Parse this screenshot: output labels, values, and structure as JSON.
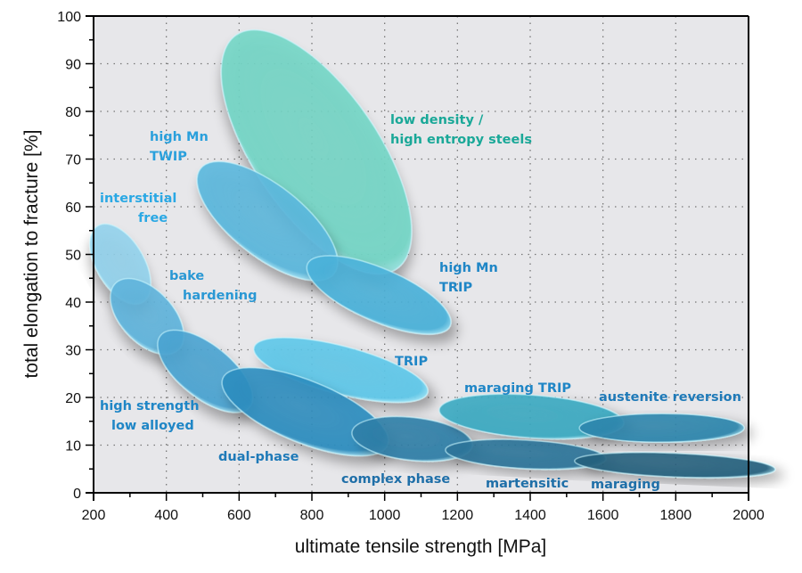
{
  "chart_data": {
    "type": "ellipse-regions",
    "xlabel": "ultimate tensile strength [MPa]",
    "ylabel": "total elongation to fracture [%]",
    "xlim": [
      200,
      2000
    ],
    "ylim": [
      0,
      100
    ],
    "xticks": [
      200,
      400,
      600,
      800,
      1000,
      1200,
      1400,
      1600,
      1800,
      2000
    ],
    "yticks": [
      0,
      10,
      20,
      30,
      40,
      50,
      60,
      70,
      80,
      90,
      100
    ],
    "grid": true,
    "regions": [
      {
        "label": [
          "low density /",
          "high entropy steels"
        ],
        "from": [
          592,
          96
        ],
        "to": [
          1033,
          47
        ],
        "width_pct": 26,
        "color": "#74d6c6",
        "label_color": "#1aa898"
      },
      {
        "label": [
          "high Mn",
          "TWIP"
        ],
        "from": [
          494,
          68
        ],
        "to": [
          861,
          46
        ],
        "width_pct": 15,
        "color": "#5bb8dd",
        "label_color": "#2aa0dc"
      },
      {
        "label": [
          "high Mn",
          "TRIP"
        ],
        "from": [
          788,
          48
        ],
        "to": [
          1180,
          35
        ],
        "width_pct": 11,
        "color": "#4ab2da",
        "label_color": "#1f86c6"
      },
      {
        "label": [
          "interstitial",
          "free"
        ],
        "from": [
          212,
          56
        ],
        "to": [
          335,
          40
        ],
        "width_pct": 10,
        "color": "#92d2ec",
        "label_color": "#2aa8e4"
      },
      {
        "label": [
          "bake",
          "hardening"
        ],
        "from": [
          261,
          44
        ],
        "to": [
          433,
          30
        ],
        "width_pct": 11,
        "color": "#5fb4dc",
        "label_color": "#2a98d4"
      },
      {
        "label": [
          "high strength",
          "low alloyed"
        ],
        "from": [
          384,
          33
        ],
        "to": [
          629,
          18
        ],
        "width_pct": 11,
        "color": "#4aa4d2",
        "label_color": "#1f86c6"
      },
      {
        "label": [
          "TRIP"
        ],
        "from": [
          641,
          30.5
        ],
        "to": [
          1118,
          21
        ],
        "width_pct": 10,
        "color": "#5ec8ea",
        "label_color": "#1f86c6"
      },
      {
        "label": [
          "dual-phase"
        ],
        "from": [
          555,
          24
        ],
        "to": [
          1008,
          10
        ],
        "width_pct": 13,
        "color": "#2e8ec0",
        "label_color": "#1f7ab8"
      },
      {
        "label": [
          "complex phase"
        ],
        "from": [
          910,
          12.7
        ],
        "to": [
          1241,
          9.9
        ],
        "width_pct": 9,
        "color": "#2f7fa8",
        "label_color": "#1f6fa8"
      },
      {
        "label": [
          "maraging TRIP"
        ],
        "from": [
          1150,
          17.4
        ],
        "to": [
          1657,
          14.6
        ],
        "width_pct": 9,
        "color": "#3aaac2",
        "label_color": "#1f86c6"
      },
      {
        "label": [
          "austenite reversion"
        ],
        "from": [
          1535,
          13.6
        ],
        "to": [
          1988,
          13.6
        ],
        "width_pct": 6,
        "color": "#2e86ad",
        "label_color": "#1f7ab8"
      },
      {
        "label": [
          "martensitic"
        ],
        "from": [
          1167,
          9
        ],
        "to": [
          1608,
          7.1
        ],
        "width_pct": 6,
        "color": "#2b7499",
        "label_color": "#1f6fa8"
      },
      {
        "label": [
          "maraging"
        ],
        "from": [
          1522,
          6.7
        ],
        "to": [
          2073,
          4.9
        ],
        "width_pct": 5,
        "color": "#23607d",
        "label_color": "#1f6fa8"
      }
    ]
  }
}
